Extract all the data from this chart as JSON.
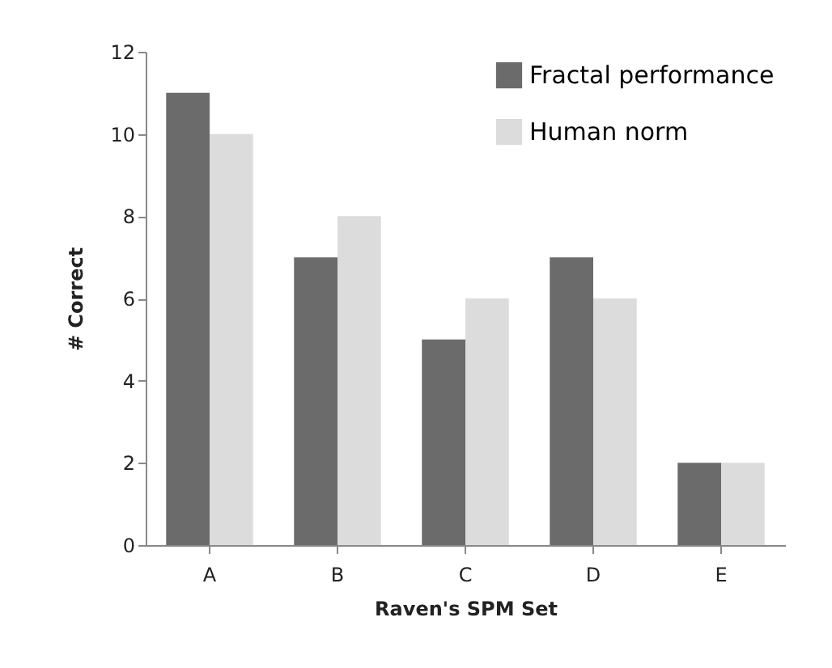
{
  "chart_data": {
    "type": "bar",
    "xlabel": "Raven's SPM Set",
    "ylabel": "# Correct",
    "categories": [
      "A",
      "B",
      "C",
      "D",
      "E"
    ],
    "series": [
      {
        "name": "Fractal performance",
        "color": "#6b6b6b",
        "values": [
          11,
          7,
          5,
          7,
          2
        ]
      },
      {
        "name": "Human norm",
        "color": "#dcdcdc",
        "values": [
          10,
          8,
          6,
          6,
          2
        ]
      }
    ],
    "ylim": [
      0,
      12
    ],
    "yticks": [
      0,
      2,
      4,
      6,
      8,
      10,
      12
    ],
    "grid": false,
    "legend": "top right"
  }
}
